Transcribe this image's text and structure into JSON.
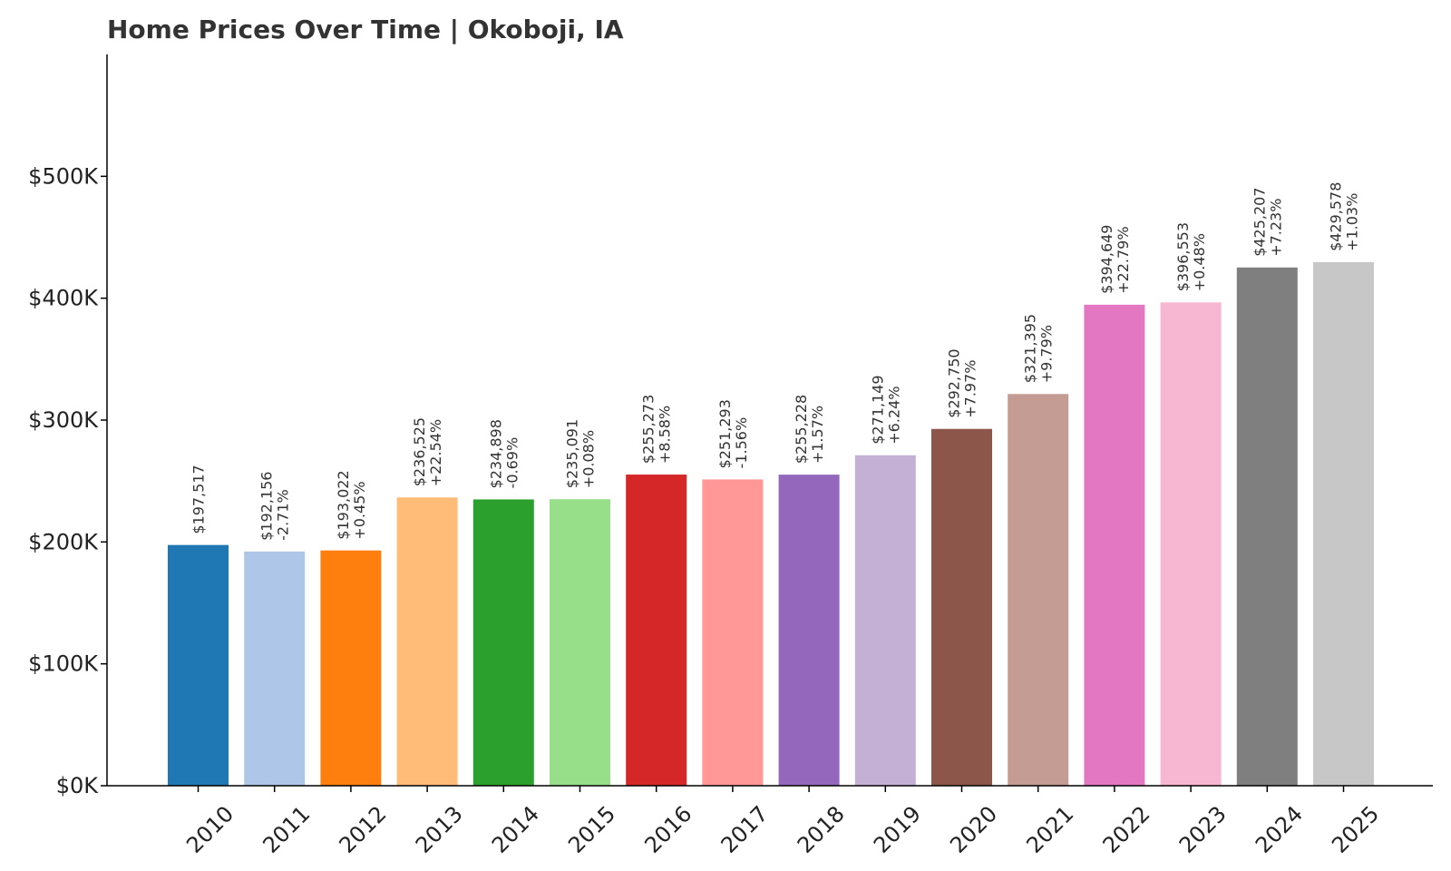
{
  "chart_data": {
    "type": "bar",
    "title": "Home Prices Over Time | Okoboji, IA",
    "xlabel": "",
    "ylabel": "",
    "categories": [
      "2010",
      "2011",
      "2012",
      "2013",
      "2014",
      "2015",
      "2016",
      "2017",
      "2018",
      "2019",
      "2020",
      "2021",
      "2022",
      "2023",
      "2024",
      "2025"
    ],
    "values": [
      197517,
      192156,
      193022,
      236525,
      234898,
      235091,
      255273,
      251293,
      255228,
      271149,
      292750,
      321395,
      394649,
      396553,
      425207,
      429578
    ],
    "value_labels": [
      "$197,517",
      "$192,156",
      "$193,022",
      "$236,525",
      "$234,898",
      "$235,091",
      "$255,273",
      "$251,293",
      "$255,228",
      "$271,149",
      "$292,750",
      "$321,395",
      "$394,649",
      "$396,553",
      "$425,207",
      "$429,578"
    ],
    "change_labels": [
      "",
      "-2.71%",
      "+0.45%",
      "+22.54%",
      "-0.69%",
      "+0.08%",
      "+8.58%",
      "-1.56%",
      "+1.57%",
      "+6.24%",
      "+7.97%",
      "+9.79%",
      "+22.79%",
      "+0.48%",
      "+7.23%",
      "+1.03%"
    ],
    "colors": [
      "#1f77b4",
      "#aec7e8",
      "#ff7f0e",
      "#ffbb78",
      "#2ca02c",
      "#98df8a",
      "#d62728",
      "#ff9896",
      "#9467bd",
      "#c5b0d5",
      "#8c564b",
      "#c49c94",
      "#e377c2",
      "#f7b6d2",
      "#7f7f7f",
      "#c7c7c7"
    ],
    "ylim": [
      0,
      600000
    ],
    "y_ticks": [
      0,
      100000,
      200000,
      300000,
      400000,
      500000
    ],
    "y_tick_labels": [
      "$0K",
      "$100K",
      "$200K",
      "$300K",
      "$400K",
      "$500K"
    ],
    "grid": false,
    "legend": "none"
  }
}
